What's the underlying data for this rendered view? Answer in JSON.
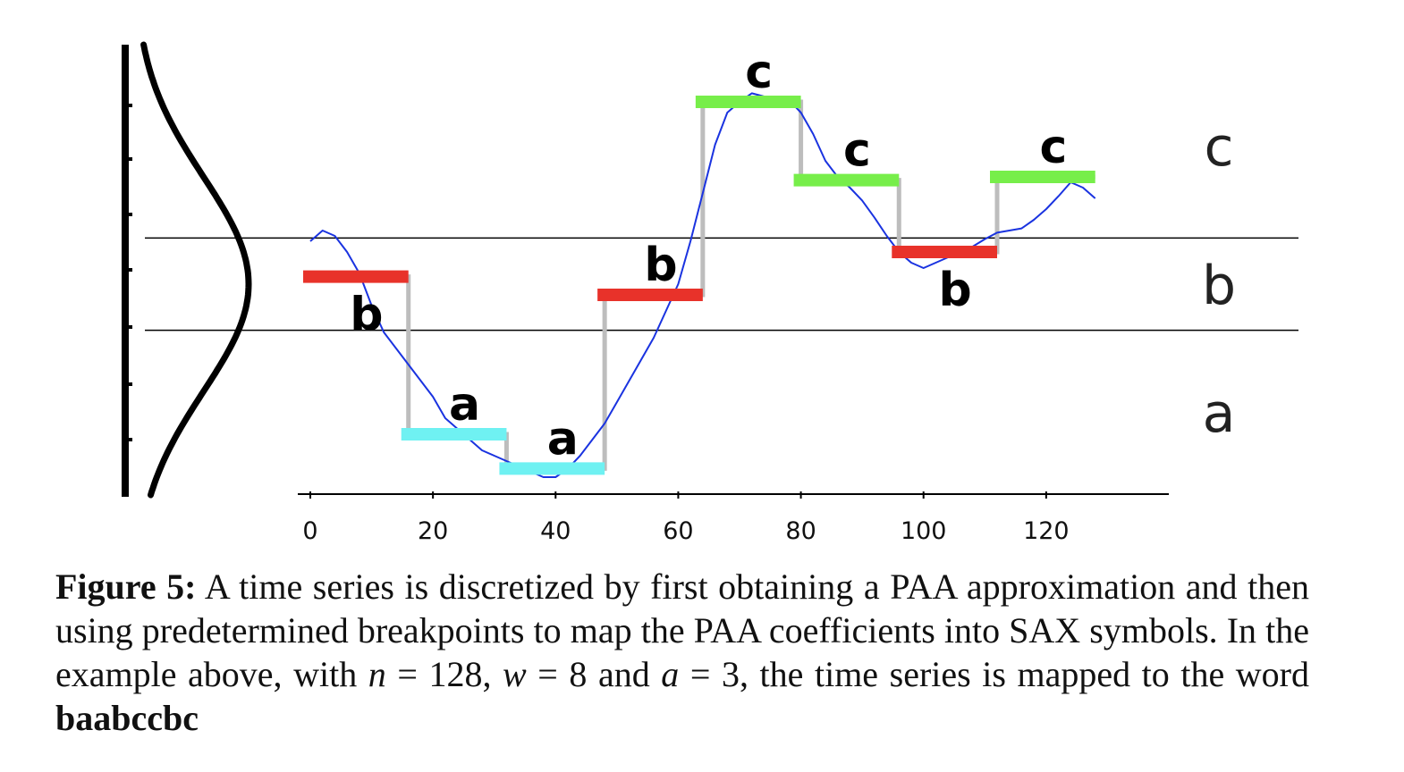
{
  "chart_data": {
    "type": "line",
    "xlim": [
      0,
      140
    ],
    "ylim": [
      -1.95,
      2.15
    ],
    "x_ticks": [
      0,
      20,
      40,
      60,
      80,
      100,
      120
    ],
    "breakpoints": [
      -0.43,
      0.43
    ],
    "band_labels": [
      "a",
      "b",
      "c"
    ],
    "series": [
      {
        "x": [
          0,
          2,
          4,
          6,
          8,
          10,
          12,
          14,
          16,
          18,
          20,
          22,
          24,
          26,
          28,
          30,
          32,
          34,
          36,
          38,
          40,
          42,
          44,
          46,
          48,
          50,
          52,
          54,
          56,
          58,
          60,
          62,
          64,
          66,
          68,
          70,
          72,
          74,
          76,
          78,
          80,
          82,
          84,
          86,
          88,
          90,
          92,
          94,
          96,
          98,
          100,
          102,
          104,
          106,
          108,
          110,
          112,
          114,
          116,
          118,
          120,
          122,
          124,
          126,
          128
        ],
        "y": [
          0.4,
          0.5,
          0.45,
          0.3,
          0.1,
          -0.2,
          -0.45,
          -0.6,
          -0.75,
          -0.9,
          -1.05,
          -1.25,
          -1.35,
          -1.45,
          -1.55,
          -1.6,
          -1.65,
          -1.7,
          -1.75,
          -1.8,
          -1.8,
          -1.72,
          -1.6,
          -1.45,
          -1.3,
          -1.1,
          -0.9,
          -0.7,
          -0.5,
          -0.25,
          0.0,
          0.4,
          0.85,
          1.3,
          1.6,
          1.7,
          1.78,
          1.75,
          1.7,
          1.72,
          1.6,
          1.4,
          1.15,
          1.0,
          0.9,
          0.78,
          0.62,
          0.45,
          0.3,
          0.2,
          0.15,
          0.2,
          0.25,
          0.28,
          0.35,
          0.42,
          0.48,
          0.5,
          0.52,
          0.6,
          0.7,
          0.82,
          0.95,
          0.9,
          0.8
        ]
      }
    ],
    "paa_segments": [
      {
        "x0": 0,
        "x1": 16,
        "value": 0.07,
        "symbol": "b"
      },
      {
        "x0": 16,
        "x1": 32,
        "value": -1.4,
        "symbol": "a"
      },
      {
        "x0": 32,
        "x1": 48,
        "value": -1.72,
        "symbol": "a"
      },
      {
        "x0": 48,
        "x1": 64,
        "value": -0.1,
        "symbol": "b"
      },
      {
        "x0": 64,
        "x1": 80,
        "value": 1.7,
        "symbol": "c"
      },
      {
        "x0": 80,
        "x1": 96,
        "value": 0.97,
        "symbol": "c"
      },
      {
        "x0": 96,
        "x1": 112,
        "value": 0.3,
        "symbol": "b"
      },
      {
        "x0": 112,
        "x1": 128,
        "value": 1.0,
        "symbol": "c"
      }
    ],
    "symbol_colors": {
      "a": "#6ff1f2",
      "b": "#e8322a",
      "c": "#77ee4a"
    },
    "colors": {
      "series": "#1a33e0",
      "paa_step": "#bdbdbd",
      "axis": "#000000"
    }
  },
  "caption": {
    "label": "Figure 5:",
    "text1": " A time series is discretized by first obtaining a PAA approximation and then using predetermined breakpoints to map the PAA coefficients into SAX symbols. In the example above, with ",
    "n_var": "n",
    "text2": " = 128, ",
    "w_var": "w",
    "text3": " = 8 and ",
    "a_var": "a",
    "text4": " = 3, the time series is mapped to the word ",
    "word": "baabccbc"
  }
}
